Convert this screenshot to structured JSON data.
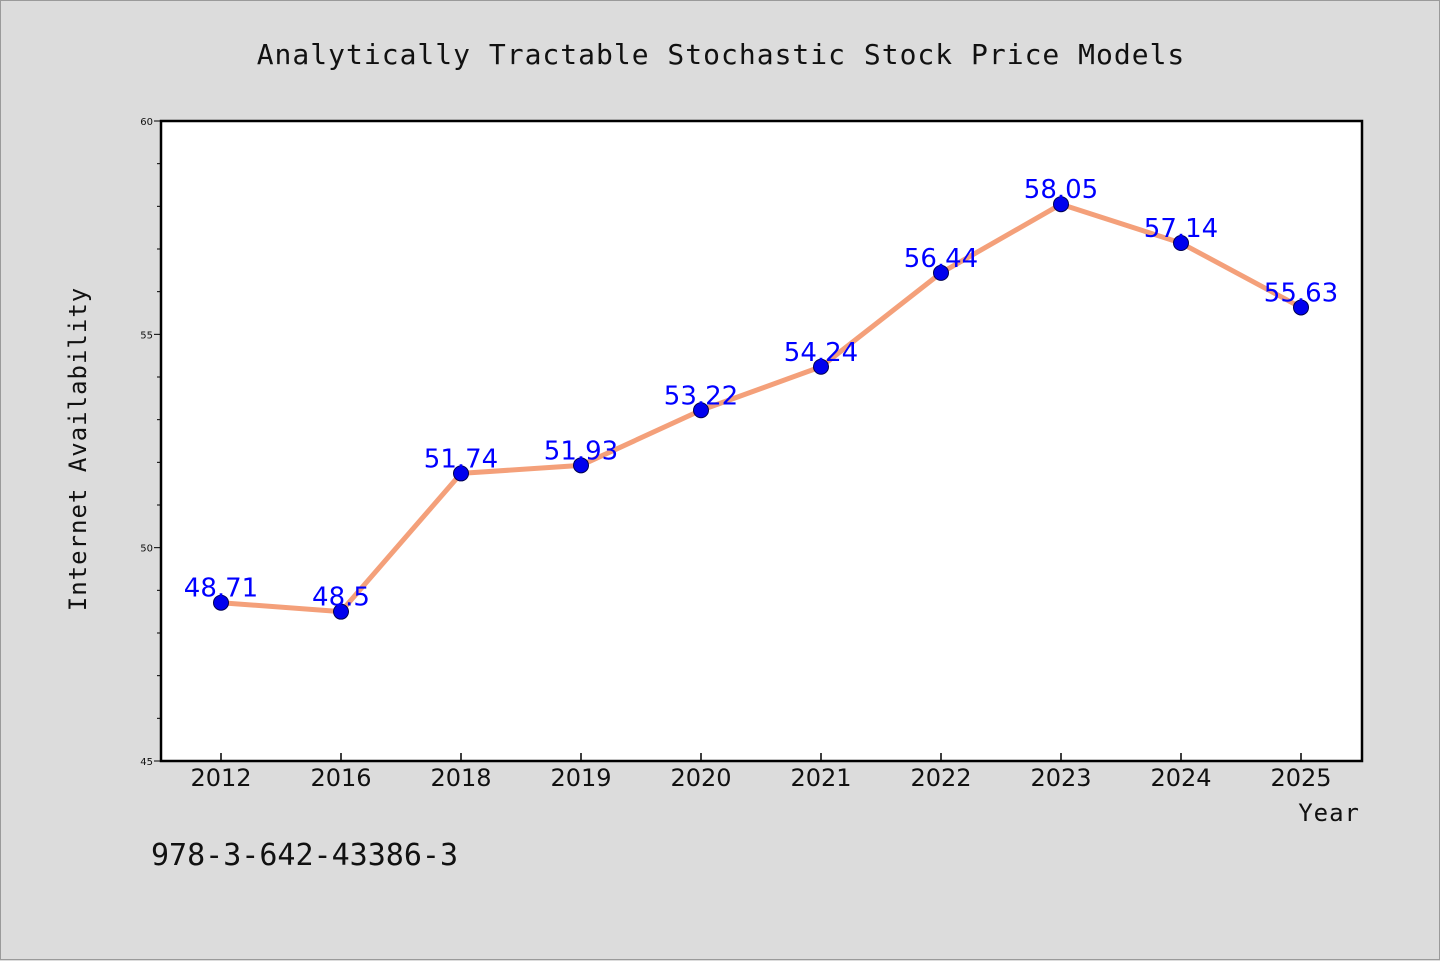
{
  "chart_data": {
    "type": "line",
    "title": "Analytically Tractable Stochastic Stock Price Models",
    "xlabel": "Year",
    "ylabel": "Internet Availability",
    "categories": [
      "2012",
      "2016",
      "2018",
      "2019",
      "2020",
      "2021",
      "2022",
      "2023",
      "2024",
      "2025"
    ],
    "values": [
      48.71,
      48.5,
      51.74,
      51.93,
      53.22,
      54.24,
      56.44,
      58.05,
      57.14,
      55.63
    ],
    "data_labels": [
      "48.71",
      "48.5",
      "51.74",
      "51.93",
      "53.22",
      "54.24",
      "56.44",
      "58.05",
      "57.14",
      "55.63"
    ],
    "ylim": [
      45,
      60
    ],
    "yticks": [
      "45",
      "50",
      "55",
      "60"
    ],
    "grid": false,
    "legend": "none",
    "line_color": "#f4a07a",
    "marker_color": "#0000ee",
    "label_color": "#0000ff"
  },
  "footer": {
    "text": "978-3-642-43386-3"
  }
}
